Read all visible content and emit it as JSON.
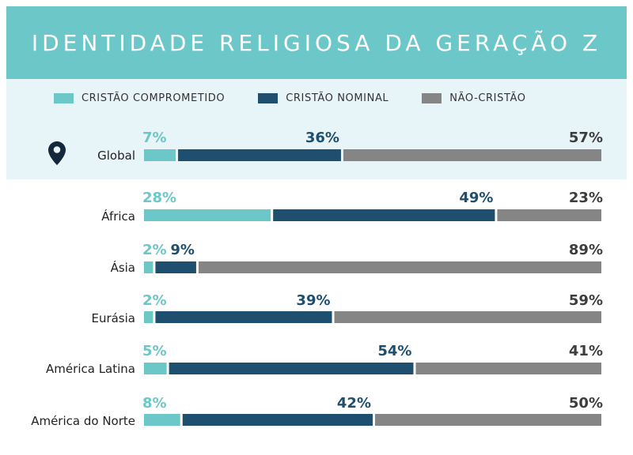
{
  "header": {
    "title": "IDENTIDADE RELIGIOSA DA GERAÇÃO Z"
  },
  "legend": [
    {
      "label": "CRISTÃO COMPROMETIDO",
      "color": "#6cc7c9"
    },
    {
      "label": "CRISTÃO NOMINAL",
      "color": "#1e4f6e"
    },
    {
      "label": "NÃO-CRISTÃO",
      "color": "#858585"
    }
  ],
  "icons": {
    "location": "map-pin-icon"
  },
  "chart_data": {
    "type": "bar",
    "stacked": true,
    "orientation": "horizontal",
    "normalized": true,
    "title": "IDENTIDADE RELIGIOSA DA GERAÇÃO Z",
    "categories": [
      "Global",
      "África",
      "Ásia",
      "Eurásia",
      "América Latina",
      "América do Norte"
    ],
    "series": [
      {
        "name": "CRISTÃO COMPROMETIDO",
        "color": "#6cc7c9",
        "label_color": "#6cc7c9",
        "values": [
          7,
          28,
          2,
          2,
          5,
          8
        ]
      },
      {
        "name": "CRISTÃO NOMINAL",
        "color": "#1e4f6e",
        "label_color": "#1e4f6e",
        "values": [
          36,
          49,
          9,
          39,
          54,
          42
        ]
      },
      {
        "name": "NÃO-CRISTÃO",
        "color": "#858585",
        "label_color": "#3d3d3d",
        "values": [
          57,
          23,
          89,
          59,
          41,
          50
        ]
      }
    ],
    "value_suffix": "%",
    "legend_position": "top",
    "grid": false
  }
}
